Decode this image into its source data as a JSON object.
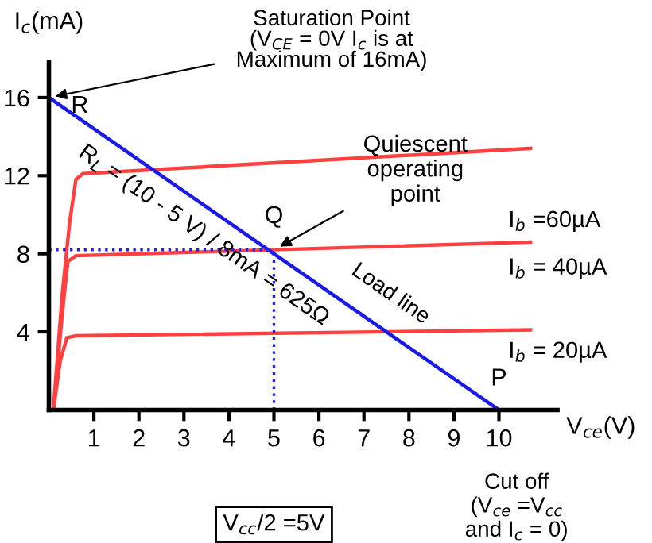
{
  "chart_data": {
    "type": "line",
    "xlabel": "V$_{ce}$(V)",
    "ylabel": "I$_{c}$(mA)",
    "xlim": [
      0,
      11.3
    ],
    "ylim": [
      0,
      17.8
    ],
    "xticks": [
      1,
      2,
      3,
      4,
      5,
      6,
      7,
      8,
      9,
      10
    ],
    "yticks": [
      4,
      8,
      12,
      16
    ],
    "grid": false,
    "legend": false,
    "marker": "none",
    "series": [
      {
        "name": "I$_{b}$ =60µA",
        "color": "#ff4040",
        "x": [
          0.1,
          0.3,
          0.46,
          0.6,
          0.75,
          10.7
        ],
        "values": [
          0,
          6,
          9.6,
          11.8,
          12.1,
          13.4
        ]
      },
      {
        "name": "I$_{b}$ = 40µA",
        "color": "#ff4040",
        "x": [
          0.1,
          0.3,
          0.42,
          0.6,
          10.7
        ],
        "values": [
          0,
          5,
          7.6,
          7.9,
          8.6
        ]
      },
      {
        "name": "I$_{b}$ = 20µA",
        "color": "#ff4040",
        "x": [
          0.1,
          0.25,
          0.4,
          0.6,
          10.7
        ],
        "values": [
          0,
          2.5,
          3.7,
          3.8,
          4.1
        ]
      },
      {
        "color": "#1a1ae6",
        "x": [
          0,
          10
        ],
        "values": [
          16,
          0
        ]
      },
      {
        "color": "#2020ff",
        "line_style": "dotted",
        "x": [
          0,
          5
        ],
        "values": [
          8.2,
          8.2
        ]
      },
      {
        "color": "#2020ff",
        "line_style": "dotted",
        "x": [
          5,
          5
        ],
        "values": [
          0,
          8.2
        ]
      }
    ],
    "annotations": [
      {
        "text": "Saturation Point\n(V$_{CE}$ = 0V I$_{c}$ is at\nMaximum of 16mA)",
        "x": 0,
        "y": 16
      },
      {
        "text": "R",
        "x": 0,
        "y": 16
      },
      {
        "text": "Quiescent\noperating\npoint",
        "x": 5,
        "y": 8.2
      },
      {
        "text": "Q",
        "x": 5,
        "y": 8.2
      },
      {
        "text": "Load line",
        "x": 7,
        "y": 4.8
      },
      {
        "text": "R$_{L}$ = (10 - 5 V) / 8mA = 625Ω",
        "x": 3.44,
        "y": 10.5
      },
      {
        "text": "P",
        "x": 10,
        "y": 0
      },
      "Cut off\n(V$_{ce}$ =V$_{cc}$\nand I$_{c}$ = 0)",
      "V$_{cc}$/2 =5V"
    ]
  }
}
